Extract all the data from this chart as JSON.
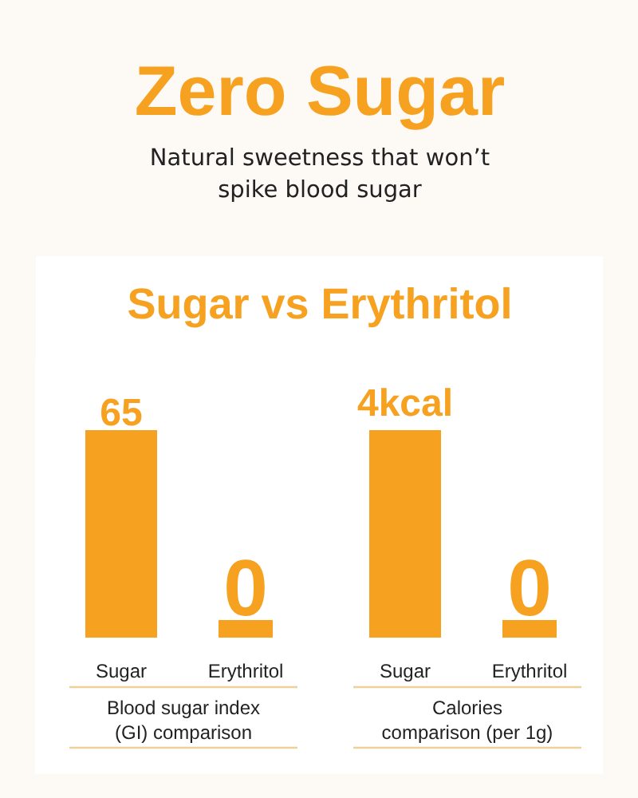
{
  "chart_data": [
    {
      "type": "other",
      "title": "Zero Sugar",
      "subtitle": "Natural sweetness that won’t\nspike blood sugar",
      "annotations": [
        "Sugar vs Erythritol"
      ]
    },
    {
      "type": "bar",
      "categories": [
        "Sugar",
        "Erythritol"
      ],
      "values": [
        65,
        0
      ],
      "color": "#f6a11f",
      "data_labels": true,
      "tick_labels": "x",
      "xlabel": "Blood sugar index\n(GI) comparison"
    },
    {
      "type": "bar",
      "categories": [
        "Sugar",
        "Erythritol"
      ],
      "values": [
        4,
        0
      ],
      "color": "#f6a11f",
      "value_labels": [
        "4kcal",
        "0"
      ],
      "tick_labels": "x",
      "xlabel": "Calories\ncomparison (per 1g)"
    }
  ]
}
